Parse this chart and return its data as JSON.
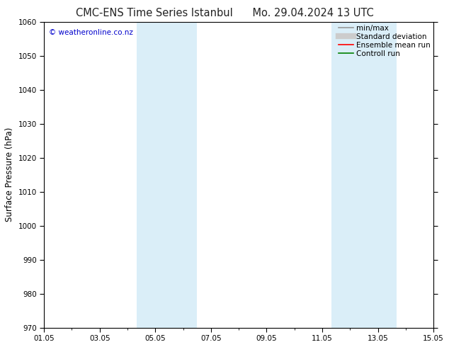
{
  "title_left": "CMC-ENS Time Series Istanbul",
  "title_right": "Mo. 29.04.2024 13 UTC",
  "ylabel": "Surface Pressure (hPa)",
  "ylim": [
    970,
    1060
  ],
  "yticks": [
    970,
    980,
    990,
    1000,
    1010,
    1020,
    1030,
    1040,
    1050,
    1060
  ],
  "xlim": [
    0,
    14
  ],
  "xtick_labels": [
    "01.05",
    "03.05",
    "05.05",
    "07.05",
    "09.05",
    "11.05",
    "13.05",
    "15.05"
  ],
  "xtick_positions": [
    0,
    2,
    4,
    6,
    8,
    10,
    12,
    14
  ],
  "shaded_bands": [
    {
      "xmin": 3.33,
      "xmax": 5.5
    },
    {
      "xmin": 10.33,
      "xmax": 12.67
    }
  ],
  "band_color": "#daeef8",
  "copyright_text": "© weatheronline.co.nz",
  "copyright_color": "#0000cc",
  "legend_items": [
    {
      "label": "min/max",
      "color": "#999999",
      "lw": 1.2
    },
    {
      "label": "Standard deviation",
      "color": "#cccccc",
      "lw": 6
    },
    {
      "label": "Ensemble mean run",
      "color": "#ff0000",
      "lw": 1.2
    },
    {
      "label": "Controll run",
      "color": "#008000",
      "lw": 1.2
    }
  ],
  "bg_color": "#ffffff",
  "title_fontsize": 10.5,
  "ylabel_fontsize": 8.5,
  "tick_fontsize": 7.5,
  "legend_fontsize": 7.5,
  "copyright_fontsize": 7.5
}
